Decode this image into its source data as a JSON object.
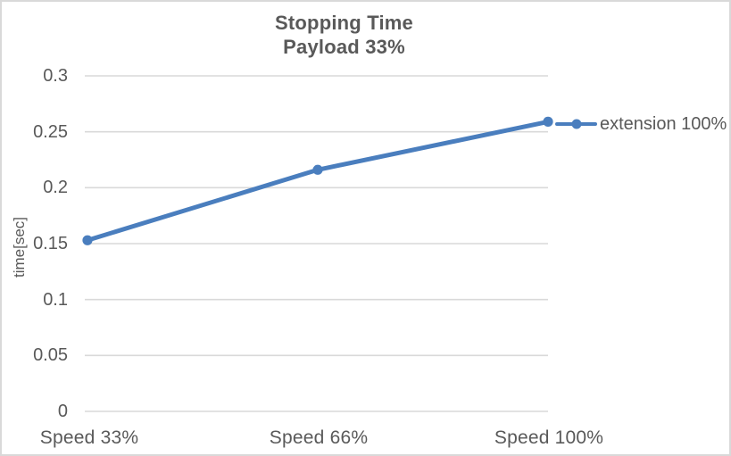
{
  "chart": {
    "title_line1": "Stopping Time",
    "title_line2": "Payload 33%",
    "ylabel": "time[sec]",
    "legend_label": "extension 100%"
  },
  "chart_data": {
    "type": "line",
    "title": "Stopping Time Payload 33%",
    "categories": [
      "Speed 33%",
      "Speed 66%",
      "Speed 100%"
    ],
    "series": [
      {
        "name": "extension 100%",
        "values": [
          0.153,
          0.216,
          0.259
        ]
      }
    ],
    "xlabel": "",
    "ylabel": "time[sec]",
    "ylim": [
      0,
      0.3
    ],
    "yticks": [
      0,
      0.05,
      0.1,
      0.15,
      0.2,
      0.25,
      0.3
    ],
    "ytick_labels": [
      "0",
      "0.05",
      "0.1",
      "0.15",
      "0.2",
      "0.25",
      "0.3"
    ],
    "grid": true,
    "legend_position": "right-of-last-point",
    "colors": {
      "series": "#4A7EBE",
      "gridline": "#D9D9D9",
      "text": "#595959",
      "border": "#D9D9D9",
      "background": "#FFFFFF"
    }
  }
}
